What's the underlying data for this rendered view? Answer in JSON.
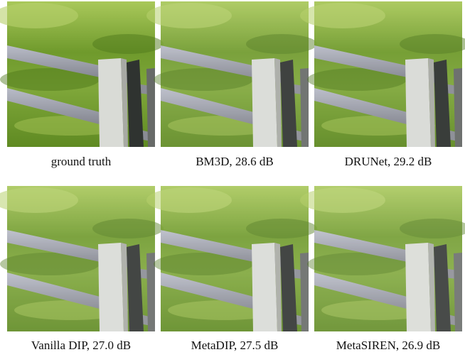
{
  "panels": [
    {
      "caption": "ground truth"
    },
    {
      "caption": "BM3D, 28.6 dB"
    },
    {
      "caption": "DRUNet, 29.2 dB"
    },
    {
      "caption": "Vanilla DIP, 27.0 dB"
    },
    {
      "caption": "MetaDIP, 27.5 dB"
    },
    {
      "caption": "MetaSIREN, 26.9 dB"
    }
  ]
}
